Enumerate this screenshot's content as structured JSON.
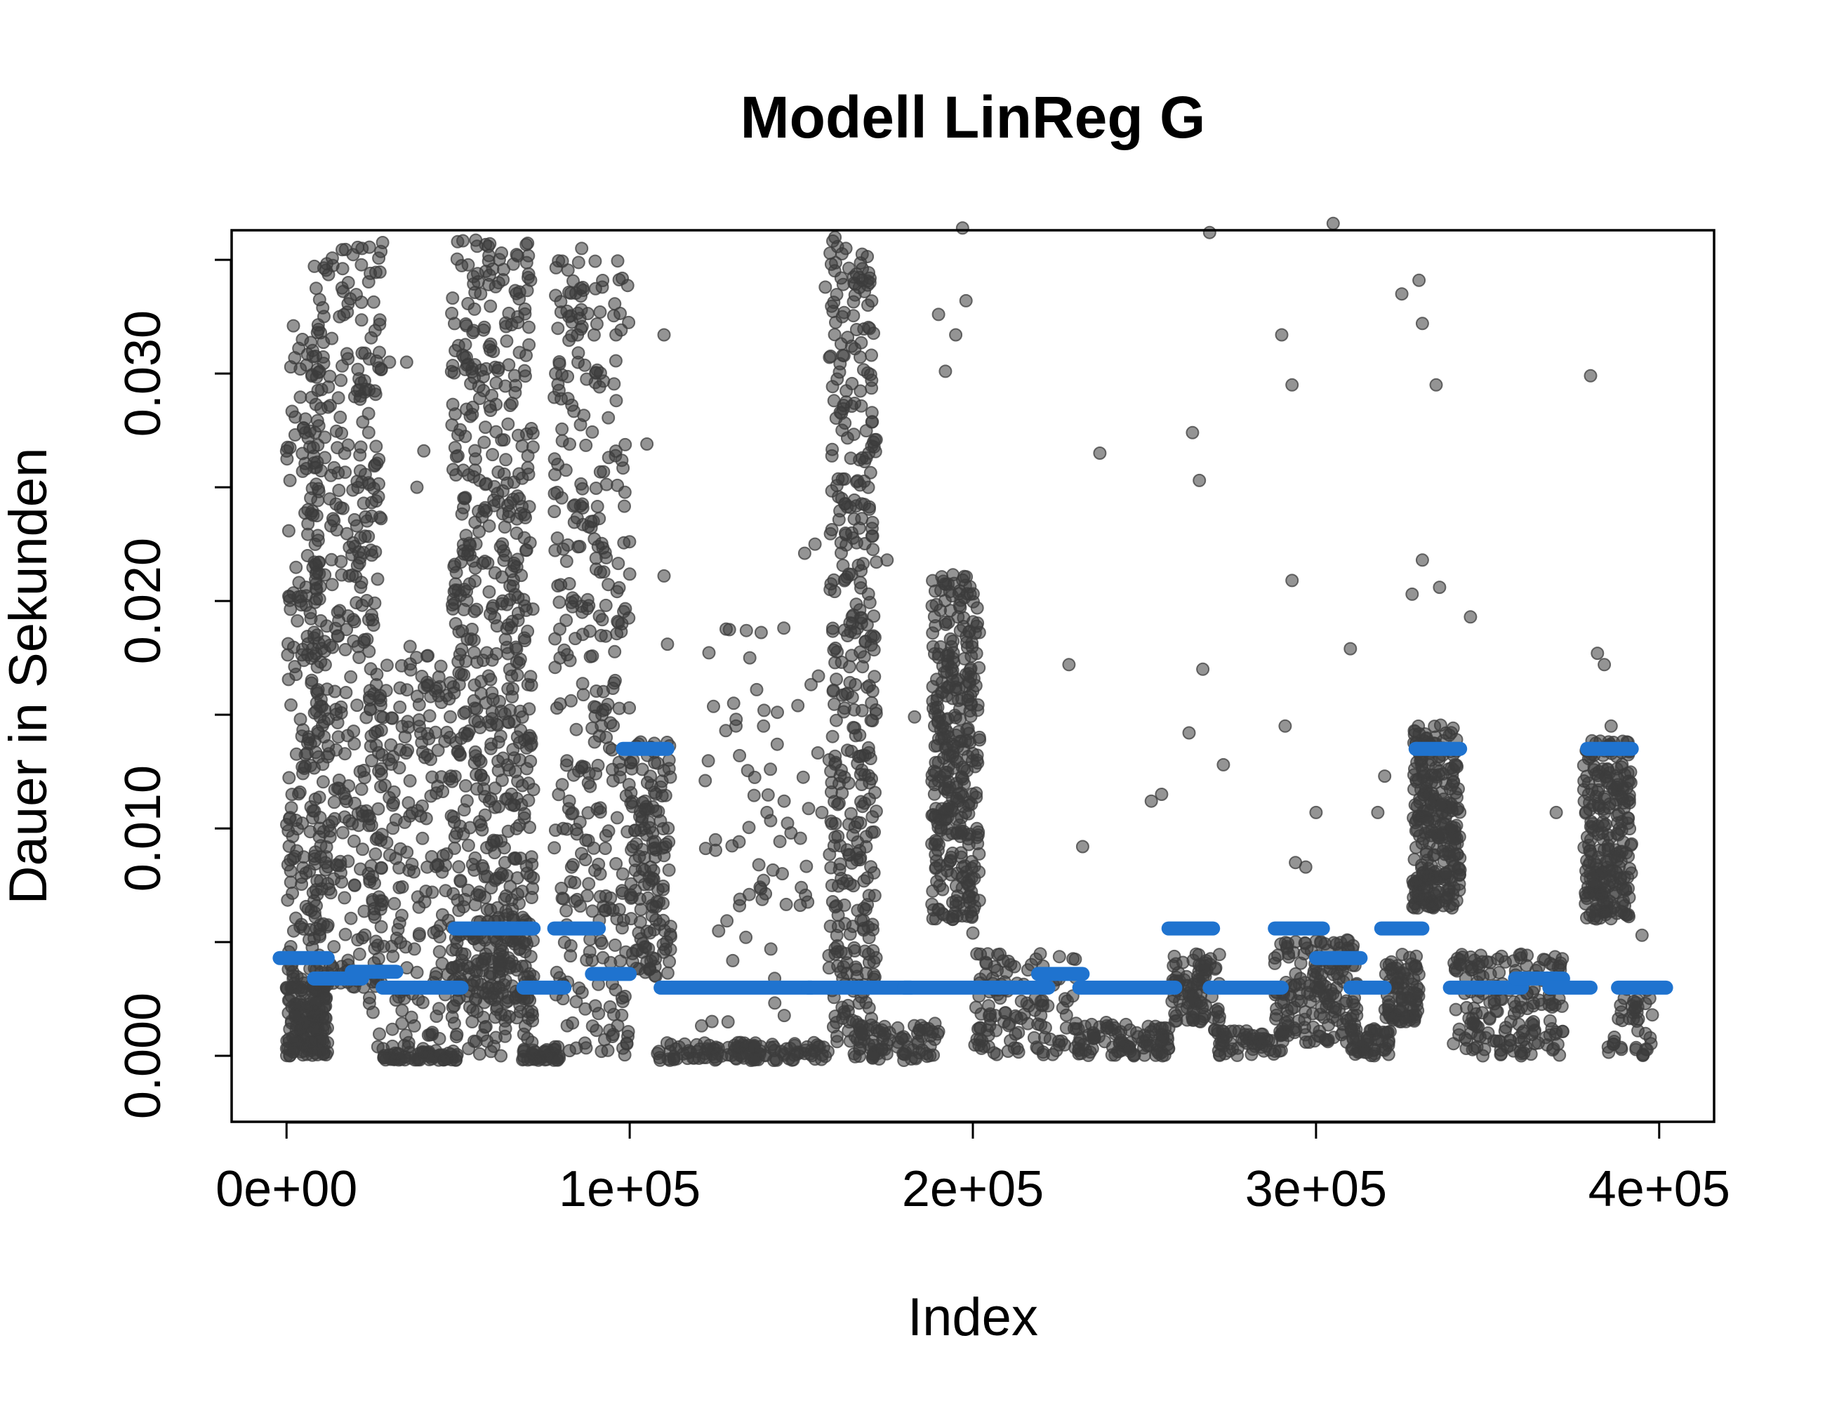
{
  "chart_data": {
    "type": "scatter",
    "title": "Modell LinReg G",
    "xlabel": "Index",
    "ylabel": "Dauer in Sekunden",
    "xlim": [
      -16000,
      416000
    ],
    "ylim": [
      -0.0029,
      0.0363
    ],
    "x_ticks": [
      0,
      100000,
      200000,
      300000,
      400000
    ],
    "x_tick_labels": [
      "0e+00",
      "1e+05",
      "2e+05",
      "3e+05",
      "4e+05"
    ],
    "y_ticks": [
      0.0,
      0.005,
      0.01,
      0.015,
      0.02,
      0.025,
      0.03,
      0.035
    ],
    "y_tick_labels": [
      "0.000",
      "",
      "0.010",
      "",
      "0.020",
      "",
      "0.030",
      ""
    ],
    "grid": false,
    "legend": "none",
    "colors": {
      "points": "#3c3c3c",
      "fit": "#1f73cf"
    },
    "series": [
      {
        "kind": "points",
        "clusters": [
          {
            "x": [
              0,
              12000
            ],
            "y": [
              0.0,
              0.0033
            ],
            "n": 180
          },
          {
            "x": [
              0,
              10000
            ],
            "y": [
              0.003,
              0.032
            ],
            "n": 200
          },
          {
            "x": [
              8000,
              28000
            ],
            "y": [
              0.003,
              0.036
            ],
            "n": 400
          },
          {
            "x": [
              24000,
              48000
            ],
            "y": [
              0.0,
              0.018
            ],
            "n": 200
          },
          {
            "x": [
              28000,
              50000
            ],
            "y": [
              -0.0002,
              0.0002
            ],
            "n": 60
          },
          {
            "x": [
              48000,
              72000
            ],
            "y": [
              0.0025,
              0.036
            ],
            "n": 600
          },
          {
            "x": [
              48000,
              72000
            ],
            "y": [
              0.0,
              0.006
            ],
            "n": 120
          },
          {
            "x": [
              68000,
              80000
            ],
            "y": [
              -0.0002,
              0.0003
            ],
            "n": 40
          },
          {
            "x": [
              78000,
              100000
            ],
            "y": [
              0.0,
              0.035
            ],
            "n": 350
          },
          {
            "x": [
              100000,
              112000
            ],
            "y": [
              0.0035,
              0.0138
            ],
            "n": 150
          },
          {
            "x": [
              108000,
              158000
            ],
            "y": [
              -0.0002,
              0.0006
            ],
            "n": 120
          },
          {
            "x": [
              120000,
              155000
            ],
            "y": [
              0.0,
              0.019
            ],
            "n": 60
          },
          {
            "x": [
              158000,
              172000
            ],
            "y": [
              0.0005,
              0.036
            ],
            "n": 400
          },
          {
            "x": [
              165000,
              190000
            ],
            "y": [
              -0.0002,
              0.0015
            ],
            "n": 80
          },
          {
            "x": [
              188000,
              202000
            ],
            "y": [
              0.006,
              0.0213
            ],
            "n": 350
          },
          {
            "x": [
              200000,
              230000
            ],
            "y": [
              0.0,
              0.0045
            ],
            "n": 120
          },
          {
            "x": [
              230000,
              258000
            ],
            "y": [
              0.0,
              0.0015
            ],
            "n": 100
          },
          {
            "x": [
              258000,
              272000
            ],
            "y": [
              0.0015,
              0.0045
            ],
            "n": 90
          },
          {
            "x": [
              270000,
              290000
            ],
            "y": [
              0.0,
              0.0012
            ],
            "n": 60
          },
          {
            "x": [
              288000,
              312000
            ],
            "y": [
              0.0006,
              0.0051
            ],
            "n": 180
          },
          {
            "x": [
              310000,
              322000
            ],
            "y": [
              0.0,
              0.0012
            ],
            "n": 50
          },
          {
            "x": [
              320000,
              330000
            ],
            "y": [
              0.0015,
              0.0045
            ],
            "n": 90
          },
          {
            "x": [
              328000,
              342000
            ],
            "y": [
              0.0065,
              0.0146
            ],
            "n": 300
          },
          {
            "x": [
              340000,
              372000
            ],
            "y": [
              0.0,
              0.0045
            ],
            "n": 180
          },
          {
            "x": [
              378000,
              392000
            ],
            "y": [
              0.006,
              0.0139
            ],
            "n": 260
          },
          {
            "x": [
              385000,
              398000
            ],
            "y": [
              0.0,
              0.003
            ],
            "n": 40
          }
        ],
        "outliers": [
          [
            2000,
            0.0321
          ],
          [
            4000,
            0.0302
          ],
          [
            1000,
            0.0253
          ],
          [
            9000,
            0.0318
          ],
          [
            18000,
            0.034
          ],
          [
            22000,
            0.0355
          ],
          [
            30000,
            0.0305
          ],
          [
            35000,
            0.0305
          ],
          [
            38000,
            0.025
          ],
          [
            40000,
            0.0266
          ],
          [
            36000,
            0.018
          ],
          [
            42000,
            0.0158
          ],
          [
            80000,
            0.0327
          ],
          [
            82000,
            0.0289
          ],
          [
            86000,
            0.0355
          ],
          [
            92000,
            0.0338
          ],
          [
            96000,
            0.0317
          ],
          [
            105000,
            0.0269
          ],
          [
            110000,
            0.0317
          ],
          [
            110000,
            0.0211
          ],
          [
            111000,
            0.0181
          ],
          [
            122000,
            0.0121
          ],
          [
            125000,
            0.0095
          ],
          [
            128000,
            0.0143
          ],
          [
            132000,
            0.0066
          ],
          [
            132000,
            0.0132
          ],
          [
            134000,
            0.0187
          ],
          [
            135000,
            0.0175
          ],
          [
            137000,
            0.0161
          ],
          [
            139000,
            0.0145
          ],
          [
            140000,
            0.0107
          ],
          [
            141000,
            0.0126
          ],
          [
            143000,
            0.0137
          ],
          [
            145000,
            0.0112
          ],
          [
            147000,
            0.0098
          ],
          [
            149000,
            0.0154
          ],
          [
            150000,
            0.0074
          ],
          [
            151000,
            0.0221
          ],
          [
            154000,
            0.0225
          ],
          [
            155000,
            0.0167
          ],
          [
            156000,
            0.0107
          ],
          [
            157000,
            0.0338
          ],
          [
            160000,
            0.0129
          ],
          [
            163000,
            0.0355
          ],
          [
            170000,
            0.034
          ],
          [
            175000,
            0.0218
          ],
          [
            183000,
            0.0149
          ],
          [
            190000,
            0.0326
          ],
          [
            192000,
            0.0301
          ],
          [
            195000,
            0.0317
          ],
          [
            197000,
            0.0364
          ],
          [
            198000,
            0.0332
          ],
          [
            199000,
            0.0075
          ],
          [
            200000,
            0.0054
          ],
          [
            228000,
            0.0172
          ],
          [
            232000,
            0.0092
          ],
          [
            237000,
            0.0265
          ],
          [
            252000,
            0.0112
          ],
          [
            255000,
            0.0115
          ],
          [
            263000,
            0.0142
          ],
          [
            264000,
            0.0274
          ],
          [
            266000,
            0.0253
          ],
          [
            267000,
            0.017
          ],
          [
            269000,
            0.0362
          ],
          [
            273000,
            0.0128
          ],
          [
            290000,
            0.0317
          ],
          [
            291000,
            0.0145
          ],
          [
            293000,
            0.0209
          ],
          [
            293000,
            0.0295
          ],
          [
            294000,
            0.0085
          ],
          [
            297000,
            0.0083
          ],
          [
            300000,
            0.0107
          ],
          [
            305000,
            0.0366
          ],
          [
            310000,
            0.0179
          ],
          [
            318000,
            0.0107
          ],
          [
            320000,
            0.0123
          ],
          [
            325000,
            0.0335
          ],
          [
            328000,
            0.0203
          ],
          [
            330000,
            0.0341
          ],
          [
            331000,
            0.0218
          ],
          [
            331000,
            0.0322
          ],
          [
            335000,
            0.0295
          ],
          [
            336000,
            0.0206
          ],
          [
            345000,
            0.0193
          ],
          [
            370000,
            0.0107
          ],
          [
            380000,
            0.0299
          ],
          [
            382000,
            0.0177
          ],
          [
            384000,
            0.0172
          ],
          [
            386000,
            0.0145
          ],
          [
            395000,
            0.0053
          ],
          [
            396000,
            0.0023
          ],
          [
            398000,
            0.0018
          ]
        ]
      },
      {
        "kind": "fit-segments",
        "segments": [
          [
            -2000,
            12000,
            0.0043
          ],
          [
            8000,
            22000,
            0.0034
          ],
          [
            19000,
            32000,
            0.0037
          ],
          [
            28000,
            51000,
            0.003
          ],
          [
            49000,
            72000,
            0.0056
          ],
          [
            69000,
            81000,
            0.003
          ],
          [
            78000,
            91000,
            0.0056
          ],
          [
            89000,
            100000,
            0.0036
          ],
          [
            98000,
            111000,
            0.0135
          ],
          [
            109000,
            153000,
            0.003
          ],
          [
            152000,
            182000,
            0.003
          ],
          [
            180000,
            222000,
            0.003
          ],
          [
            219000,
            232000,
            0.0036
          ],
          [
            231000,
            259000,
            0.003
          ],
          [
            257000,
            270000,
            0.0056
          ],
          [
            269000,
            290000,
            0.003
          ],
          [
            288000,
            302000,
            0.0056
          ],
          [
            300000,
            313000,
            0.0043
          ],
          [
            310000,
            320000,
            0.003
          ],
          [
            319000,
            331000,
            0.0056
          ],
          [
            329000,
            342000,
            0.0135
          ],
          [
            339000,
            360000,
            0.003
          ],
          [
            358000,
            372000,
            0.0034
          ],
          [
            368000,
            380000,
            0.003
          ],
          [
            379000,
            392000,
            0.0135
          ],
          [
            388000,
            402000,
            0.003
          ]
        ]
      }
    ]
  }
}
